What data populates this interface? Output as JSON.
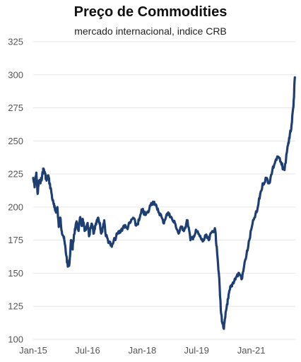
{
  "chart_data": {
    "type": "line",
    "title": "Preço de Commodities",
    "subtitle": "mercado internacional, indice CRB",
    "xlabel": "",
    "ylabel": "",
    "ylim": [
      100,
      325
    ],
    "yticks": [
      100,
      125,
      150,
      175,
      200,
      225,
      250,
      275,
      300,
      325
    ],
    "xticks": [
      {
        "label": "Jan-15",
        "date": "2015-01-01"
      },
      {
        "label": "Jul-16",
        "date": "2016-07-01"
      },
      {
        "label": "Jan-18",
        "date": "2018-01-01"
      },
      {
        "label": "Jul-19",
        "date": "2019-07-01"
      },
      {
        "label": "Jan-21",
        "date": "2021-01-01"
      }
    ],
    "xlim": [
      "2015-01-01",
      "2022-03-20"
    ],
    "grid": true,
    "line_color": "#1f3f73",
    "series": [
      {
        "x": [
          "2015-01-01",
          "2015-01-15",
          "2015-02-01",
          "2015-02-15",
          "2015-03-01",
          "2015-03-15",
          "2015-04-01",
          "2015-04-15",
          "2015-05-01",
          "2015-05-15",
          "2015-06-01",
          "2015-06-15",
          "2015-07-01",
          "2015-07-15",
          "2015-08-01",
          "2015-08-15",
          "2015-09-01",
          "2015-09-15",
          "2015-10-01",
          "2015-10-15",
          "2015-11-01",
          "2015-11-15",
          "2015-12-01",
          "2015-12-15",
          "2016-01-01",
          "2016-01-15",
          "2016-02-01",
          "2016-02-15",
          "2016-03-01",
          "2016-03-15",
          "2016-04-01",
          "2016-04-15",
          "2016-05-01",
          "2016-05-15",
          "2016-06-01",
          "2016-06-15",
          "2016-07-01",
          "2016-07-15",
          "2016-08-01",
          "2016-08-15",
          "2016-09-01",
          "2016-09-15",
          "2016-10-01",
          "2016-10-15",
          "2016-11-01",
          "2016-11-15",
          "2016-12-01",
          "2016-12-15",
          "2017-01-01",
          "2017-02-01",
          "2017-03-01",
          "2017-04-01",
          "2017-05-01",
          "2017-06-01",
          "2017-07-01",
          "2017-08-01",
          "2017-09-01",
          "2017-10-01",
          "2017-11-01",
          "2017-12-01",
          "2018-01-01",
          "2018-02-01",
          "2018-03-01",
          "2018-04-01",
          "2018-05-01",
          "2018-06-01",
          "2018-07-01",
          "2018-08-01",
          "2018-09-01",
          "2018-10-01",
          "2018-11-01",
          "2018-12-01",
          "2019-01-01",
          "2019-02-01",
          "2019-03-01",
          "2019-04-01",
          "2019-05-01",
          "2019-06-01",
          "2019-07-01",
          "2019-08-01",
          "2019-09-01",
          "2019-10-01",
          "2019-11-01",
          "2019-12-01",
          "2020-01-01",
          "2020-01-20",
          "2020-02-10",
          "2020-03-01",
          "2020-03-15",
          "2020-04-01",
          "2020-04-15",
          "2020-05-01",
          "2020-05-15",
          "2020-06-01",
          "2020-06-15",
          "2020-07-01",
          "2020-08-01",
          "2020-09-01",
          "2020-10-01",
          "2020-11-01",
          "2020-12-01",
          "2021-01-01",
          "2021-02-01",
          "2021-03-01",
          "2021-04-01",
          "2021-05-01",
          "2021-06-01",
          "2021-07-01",
          "2021-08-01",
          "2021-09-01",
          "2021-10-01",
          "2021-11-01",
          "2021-12-01",
          "2022-01-01",
          "2022-01-20",
          "2022-02-10",
          "2022-03-01",
          "2022-03-15"
        ],
        "y": [
          222,
          215,
          226,
          210,
          220,
          218,
          224,
          229,
          225,
          220,
          224,
          218,
          212,
          205,
          200,
          197,
          200,
          185,
          192,
          182,
          178,
          172,
          163,
          155,
          158,
          175,
          168,
          179,
          185,
          188,
          182,
          192,
          186,
          190,
          182,
          184,
          188,
          178,
          184,
          187,
          180,
          186,
          190,
          192,
          188,
          180,
          185,
          190,
          178,
          174,
          170,
          176,
          180,
          182,
          186,
          184,
          188,
          192,
          186,
          190,
          198,
          194,
          196,
          203,
          204,
          198,
          195,
          188,
          194,
          195,
          190,
          187,
          180,
          185,
          183,
          190,
          175,
          178,
          182,
          178,
          174,
          178,
          175,
          181,
          184,
          170,
          150,
          122,
          113,
          108,
          117,
          126,
          131,
          138,
          140,
          143,
          147,
          150,
          146,
          160,
          170,
          183,
          192,
          197,
          210,
          218,
          222,
          218,
          228,
          235,
          238,
          232,
          228,
          246,
          252,
          262,
          276,
          298
        ]
      }
    ]
  }
}
